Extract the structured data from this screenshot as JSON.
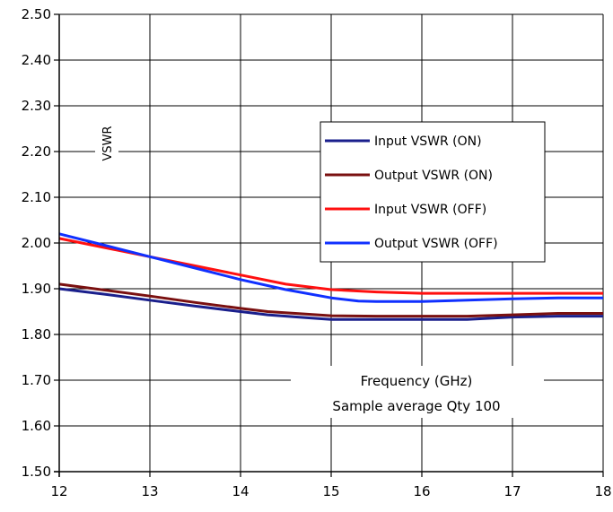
{
  "chart_data": {
    "type": "line",
    "title": "",
    "xlabel": "Frequency (GHz)",
    "ylabel": "VSWR",
    "annotation": "Sample average Qty 100",
    "xlim": [
      12,
      18
    ],
    "ylim": [
      1.5,
      2.5
    ],
    "x_ticks": [
      12,
      13,
      14,
      15,
      16,
      17,
      18
    ],
    "x_tick_labels": [
      "12",
      "13",
      "14",
      "15",
      "16",
      "17",
      "18"
    ],
    "y_ticks": [
      1.5,
      1.6,
      1.7,
      1.8,
      1.9,
      2.0,
      2.1,
      2.2,
      2.3,
      2.4,
      2.5
    ],
    "y_tick_labels": [
      "1.50",
      "1.60",
      "1.70",
      "1.80",
      "1.90",
      "2.00",
      "2.10",
      "2.20",
      "2.30",
      "2.40",
      "2.50"
    ],
    "grid": true,
    "legend_position": "center-right",
    "series": [
      {
        "name": "Input VSWR (ON)",
        "color": "#1a1f8c",
        "x": [
          12.0,
          12.5,
          13.0,
          13.5,
          14.0,
          14.3,
          14.7,
          15.0,
          15.5,
          16.0,
          16.5,
          17.0,
          17.5,
          18.0
        ],
        "y": [
          1.9,
          1.888,
          1.875,
          1.862,
          1.85,
          1.843,
          1.837,
          1.833,
          1.833,
          1.833,
          1.833,
          1.838,
          1.84,
          1.84
        ]
      },
      {
        "name": "Output VSWR (ON)",
        "color": "#7a1010",
        "x": [
          12.0,
          12.5,
          13.0,
          13.5,
          14.0,
          14.3,
          14.7,
          15.0,
          15.5,
          16.0,
          16.5,
          17.0,
          17.5,
          18.0
        ],
        "y": [
          1.91,
          1.897,
          1.884,
          1.87,
          1.857,
          1.85,
          1.845,
          1.841,
          1.84,
          1.84,
          1.84,
          1.843,
          1.846,
          1.846
        ]
      },
      {
        "name": "Input VSWR (OFF)",
        "color": "#ff1010",
        "x": [
          12.0,
          12.5,
          13.0,
          13.5,
          14.0,
          14.5,
          15.0,
          15.5,
          16.0,
          16.5,
          17.0,
          17.5,
          18.0
        ],
        "y": [
          2.01,
          1.99,
          1.97,
          1.95,
          1.93,
          1.91,
          1.898,
          1.893,
          1.89,
          1.89,
          1.89,
          1.89,
          1.89
        ]
      },
      {
        "name": "Output VSWR (OFF)",
        "color": "#1030ff",
        "x": [
          12.0,
          12.5,
          13.0,
          13.5,
          14.0,
          14.5,
          15.0,
          15.3,
          15.5,
          16.0,
          16.5,
          17.0,
          17.5,
          18.0
        ],
        "y": [
          2.02,
          1.995,
          1.97,
          1.945,
          1.92,
          1.898,
          1.88,
          1.873,
          1.872,
          1.872,
          1.875,
          1.878,
          1.88,
          1.88
        ]
      }
    ]
  }
}
